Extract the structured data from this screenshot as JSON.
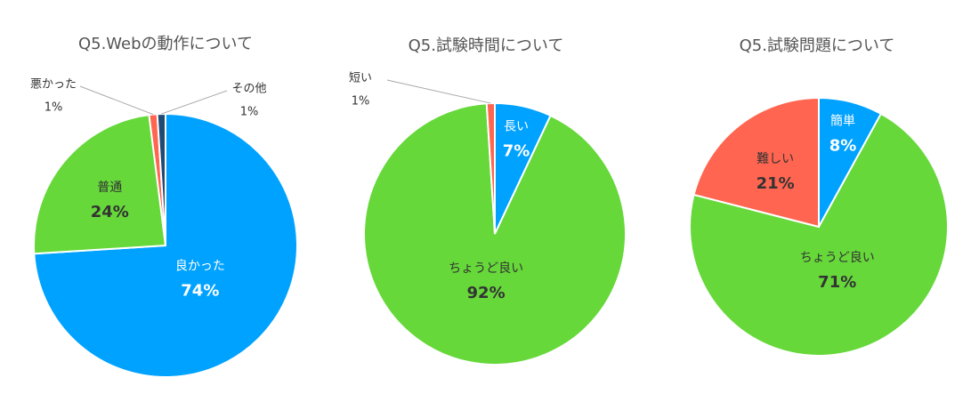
{
  "chart_data": [
    {
      "type": "pie",
      "title": "Q5.Webの動作について",
      "categories": [
        "良かった",
        "普通",
        "悪かった",
        "その他"
      ],
      "values": [
        74,
        24,
        1,
        1
      ],
      "value_labels": [
        "74%",
        "24%",
        "1%",
        "1%"
      ],
      "colors": [
        "#00a2ff",
        "#66d83a",
        "#ff6550",
        "#1e4a74"
      ]
    },
    {
      "type": "pie",
      "title": "Q5.試験時間について",
      "categories": [
        "長い",
        "ちょうど良い",
        "短い"
      ],
      "values": [
        7,
        92,
        1
      ],
      "value_labels": [
        "7%",
        "92%",
        "1%"
      ],
      "colors": [
        "#00a2ff",
        "#66d83a",
        "#ff6550"
      ]
    },
    {
      "type": "pie",
      "title": "Q5.試験問題について",
      "categories": [
        "簡単",
        "ちょうど良い",
        "難しい"
      ],
      "values": [
        8,
        71,
        21
      ],
      "value_labels": [
        "8%",
        "71%",
        "21%"
      ],
      "colors": [
        "#00a2ff",
        "#66d83a",
        "#ff6550"
      ]
    }
  ]
}
